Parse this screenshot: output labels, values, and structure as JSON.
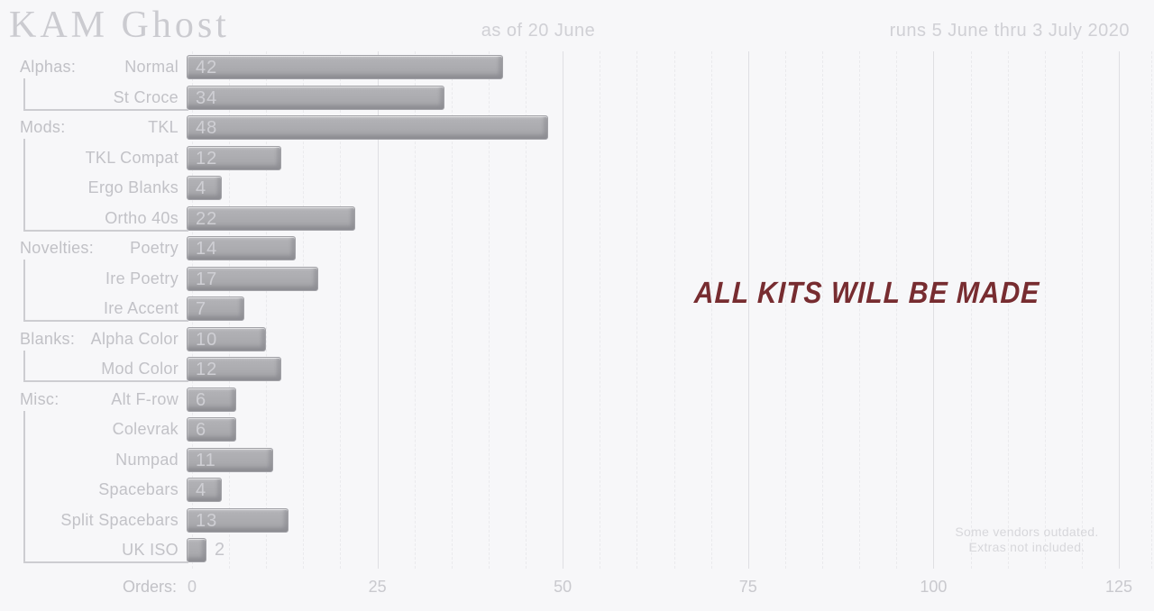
{
  "chart_data": {
    "type": "bar",
    "orientation": "horizontal",
    "title": "KAM Ghost",
    "subtitle_center": "as of 20 June",
    "subtitle_right": "runs 5 June thru 3 July 2020",
    "xlabel": "Orders:",
    "x_ticks": [
      0,
      25,
      50,
      75,
      100,
      125
    ],
    "xlim": [
      0,
      130
    ],
    "grid": true,
    "minor_grid_step": 5,
    "major_grid_step": 25,
    "annotation": "ALL KITS WILL BE MADE",
    "footnote_line1": "Some vendors outdated.",
    "footnote_line2": "Extras not included.",
    "groups": [
      {
        "label": "Alphas:",
        "items": [
          {
            "label": "Normal",
            "value": 42
          },
          {
            "label": "St Croce",
            "value": 34
          }
        ]
      },
      {
        "label": "Mods:",
        "items": [
          {
            "label": "TKL",
            "value": 48
          },
          {
            "label": "TKL Compat",
            "value": 12
          },
          {
            "label": "Ergo Blanks",
            "value": 4
          },
          {
            "label": "Ortho 40s",
            "value": 22
          }
        ]
      },
      {
        "label": "Novelties:",
        "items": [
          {
            "label": "Poetry",
            "value": 14
          },
          {
            "label": "Ire Poetry",
            "value": 17
          },
          {
            "label": "Ire Accent",
            "value": 7
          }
        ]
      },
      {
        "label": "Blanks:",
        "items": [
          {
            "label": "Alpha Color",
            "value": 10
          },
          {
            "label": "Mod Color",
            "value": 12
          }
        ]
      },
      {
        "label": "Misc:",
        "items": [
          {
            "label": "Alt F-row",
            "value": 6
          },
          {
            "label": "Colevrak",
            "value": 6
          },
          {
            "label": "Numpad",
            "value": 11
          },
          {
            "label": "Spacebars",
            "value": 4
          },
          {
            "label": "Split Spacebars",
            "value": 13
          },
          {
            "label": "UK ISO",
            "value": 2
          }
        ]
      }
    ],
    "colors": {
      "background": "#f7f7f9",
      "bar": "#aaaaae",
      "annotation": "#772c30",
      "label_text": "#c2c2c7",
      "grid_minor": "#eaeaed",
      "grid_major": "#dfdfe3"
    }
  }
}
